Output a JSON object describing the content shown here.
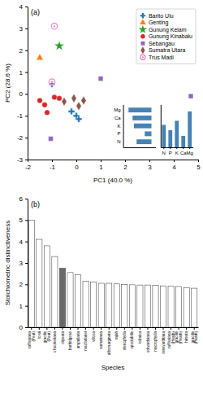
{
  "chart_data": [
    {
      "type": "scatter",
      "title": "(a)",
      "xlabel": "PC1 (40.0 %)",
      "ylabel": "PC2 (28.6 %)",
      "xlim": [
        -2,
        5
      ],
      "ylim": [
        -3,
        4
      ],
      "xticks": [
        -2,
        -1,
        0,
        1,
        2,
        3,
        4,
        5
      ],
      "yticks": [
        -3,
        -2,
        -1,
        0,
        1,
        2,
        3,
        4
      ],
      "legend": "upper right",
      "series": [
        {
          "name": "Barito Ulu",
          "marker": "plus",
          "x": [
            -1.0,
            -0.2,
            0.0,
            0.1
          ],
          "y": [
            0.45,
            -0.8,
            -1.0,
            -1.15
          ]
        },
        {
          "name": "Genting",
          "marker": "triangle",
          "x": [
            -1.5
          ],
          "y": [
            1.65
          ]
        },
        {
          "name": "Gunung Kelam",
          "marker": "star",
          "x": [
            -0.7
          ],
          "y": [
            2.2
          ]
        },
        {
          "name": "Gunung Kinabalu",
          "marker": "circle",
          "x": [
            -1.5,
            -1.3,
            -1.2,
            -0.9,
            -0.7
          ],
          "y": [
            -0.3,
            -0.5,
            -0.85,
            -0.15,
            -0.2
          ]
        },
        {
          "name": "Sebangau",
          "marker": "square",
          "x": [
            -1.05,
            1.0,
            4.7
          ],
          "y": [
            -2.05,
            0.7,
            -0.1
          ]
        },
        {
          "name": "Sumatra Utara",
          "marker": "diamond",
          "x": [
            -0.5,
            -0.1,
            0.1,
            0.3
          ],
          "y": [
            -0.35,
            -0.2,
            -0.55,
            -0.3
          ]
        },
        {
          "name": "Trus Madi",
          "marker": "target",
          "x": [
            -1.0,
            -0.9
          ],
          "y": [
            0.55,
            3.1
          ]
        }
      ]
    },
    {
      "type": "bar",
      "orientation": "horizontal",
      "categories": [
        "N",
        "P",
        "K",
        "Ca",
        "Mg"
      ],
      "values": [
        -0.55,
        -0.25,
        -0.65,
        -0.7,
        -0.85
      ],
      "xlim": [
        -1.05,
        0.15
      ],
      "tick_labels": "y"
    },
    {
      "type": "bar",
      "categories": [
        "N",
        "P",
        "K",
        "Ca",
        "Mg"
      ],
      "values": [
        0.55,
        0.42,
        0.65,
        0.28,
        0.88
      ],
      "ylim": [
        0,
        1.05
      ],
      "tick_labels": "x"
    },
    {
      "type": "bar",
      "title": "(b)",
      "xlabel": "Species",
      "ylabel": "Stoichiometric distinctiveness",
      "categories": [
        "rafflesiana\n(Peat)",
        "lowii",
        "gracilis\n(Peat)",
        "x hookeriana",
        "clipeata",
        "burbidgeae",
        "ampullaria",
        "macfarlanei",
        "villosa",
        "sumatrana",
        "albomarginata",
        "rajah",
        "stenophylla",
        "spectabilis",
        "tobaica",
        "edwardsiana",
        "macrophylla",
        "reinwardtiana",
        "rafflesiana\n(Heath)",
        "gracilis\n(Heath)",
        "hirsuta",
        "gracilis\n(Heath)"
      ],
      "values": [
        5.0,
        4.1,
        3.8,
        3.3,
        2.75,
        2.55,
        2.45,
        2.15,
        2.1,
        2.05,
        2.05,
        2.02,
        2.0,
        1.98,
        1.97,
        1.97,
        1.95,
        1.93,
        1.92,
        1.9,
        1.85,
        1.82
      ],
      "colors": [
        "white",
        "white",
        "white",
        "white",
        "dimgray",
        "white",
        "white",
        "white",
        "white",
        "white",
        "white",
        "white",
        "white",
        "white",
        "white",
        "white",
        "white",
        "white",
        "white",
        "white",
        "white",
        "white"
      ],
      "ylim": [
        0,
        6
      ],
      "yticks": [
        0,
        1,
        2,
        3,
        4,
        5,
        6
      ]
    }
  ]
}
